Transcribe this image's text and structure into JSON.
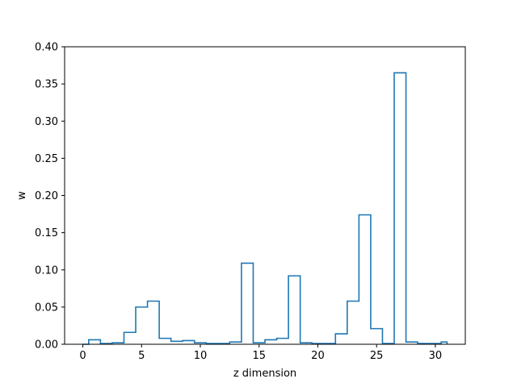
{
  "chart_data": {
    "type": "histogram-step",
    "xlabel": "z dimension",
    "ylabel": "w",
    "xlim": [
      -1.55,
      32.55
    ],
    "ylim": [
      0,
      0.4
    ],
    "x_ticks": [
      0,
      5,
      10,
      15,
      20,
      25,
      30
    ],
    "y_ticks": [
      0.0,
      0.05,
      0.1,
      0.15,
      0.2,
      0.25,
      0.3,
      0.35,
      0.4
    ],
    "x_tick_labels": [
      "0",
      "5",
      "10",
      "15",
      "20",
      "25",
      "30"
    ],
    "y_tick_labels": [
      "0.00",
      "0.05",
      "0.10",
      "0.15",
      "0.20",
      "0.25",
      "0.30",
      "0.35",
      "0.40"
    ],
    "bin_edges": [
      0,
      0.5,
      1.5,
      2.5,
      3.5,
      4.5,
      5.5,
      6.5,
      7.5,
      8.5,
      9.5,
      10.5,
      11.5,
      12.5,
      13.5,
      14.5,
      15.5,
      16.5,
      17.5,
      18.5,
      19.5,
      20.5,
      21.5,
      22.5,
      23.5,
      24.5,
      25.5,
      26.5,
      27.5,
      28.5,
      29.5,
      30.5,
      31
    ],
    "values": [
      0.0,
      0.006,
      0.001,
      0.002,
      0.016,
      0.05,
      0.058,
      0.008,
      0.004,
      0.005,
      0.002,
      0.001,
      0.001,
      0.003,
      0.109,
      0.002,
      0.006,
      0.008,
      0.092,
      0.002,
      0.001,
      0.001,
      0.014,
      0.058,
      0.174,
      0.021,
      0.001,
      0.365,
      0.003,
      0.001,
      0.001,
      0.003
    ],
    "color": "#1f77b4",
    "grid": false,
    "legend": "none"
  }
}
